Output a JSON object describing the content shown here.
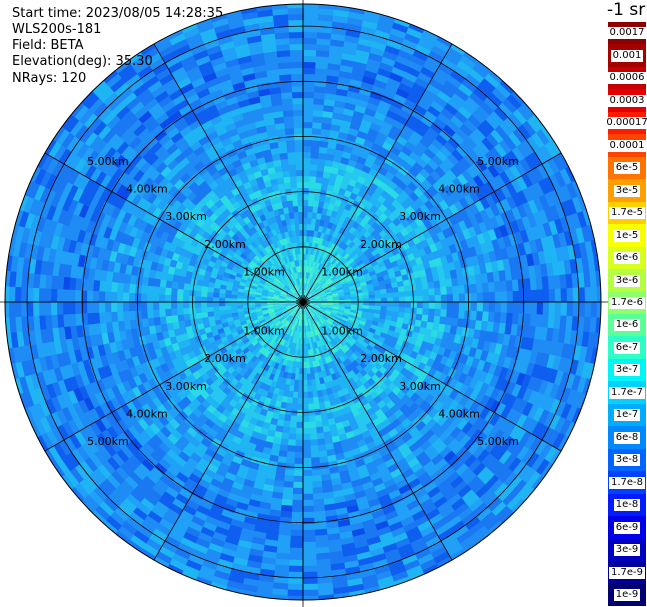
{
  "info": {
    "start_time": "Start time: 2023/08/05 14:28:35",
    "instrument": "WLS200s-181",
    "field": "Field: BETA",
    "elevation": "Elevation(deg): 35.30",
    "nrays": "NRays: 120"
  },
  "colorbar": {
    "title": "-1 sr",
    "entries": [
      {
        "label": "0.0017",
        "color": "#8b0000"
      },
      {
        "label": "0.001",
        "color": "#a50000"
      },
      {
        "label": "0.0006",
        "color": "#c40000"
      },
      {
        "label": "0.0003",
        "color": "#e40000"
      },
      {
        "label": "0.00017",
        "color": "#ff1a00"
      },
      {
        "label": "0.0001",
        "color": "#ff4400"
      },
      {
        "label": "6e-5",
        "color": "#ff7300"
      },
      {
        "label": "3e-5",
        "color": "#ff9f00"
      },
      {
        "label": "1.7e-5",
        "color": "#ffcf00"
      },
      {
        "label": "1e-5",
        "color": "#f7ff00"
      },
      {
        "label": "6e-6",
        "color": "#d9ff1e"
      },
      {
        "label": "3e-6",
        "color": "#b5ff42"
      },
      {
        "label": "1.7e-6",
        "color": "#8cff6b"
      },
      {
        "label": "1e-6",
        "color": "#5dff9a"
      },
      {
        "label": "6e-7",
        "color": "#2effc9"
      },
      {
        "label": "3e-7",
        "color": "#00f5f5"
      },
      {
        "label": "1.7e-7",
        "color": "#00d2ff"
      },
      {
        "label": "1e-7",
        "color": "#00acff"
      },
      {
        "label": "6e-8",
        "color": "#0088ff"
      },
      {
        "label": "3e-8",
        "color": "#0064ff"
      },
      {
        "label": "1.7e-8",
        "color": "#0040ff"
      },
      {
        "label": "1e-8",
        "color": "#001cff"
      },
      {
        "label": "6e-9",
        "color": "#0000e8"
      },
      {
        "label": "3e-9",
        "color": "#0000c0"
      },
      {
        "label": "1.7e-9",
        "color": "#000098"
      },
      {
        "label": "1e-9",
        "color": "#000070"
      }
    ]
  },
  "range_rings": [
    {
      "label": "1.00km",
      "range_km": 1
    },
    {
      "label": "2.00km",
      "range_km": 2
    },
    {
      "label": "3.00km",
      "range_km": 3
    },
    {
      "label": "4.00km",
      "range_km": 4
    },
    {
      "label": "5.00km",
      "range_km": 5
    }
  ],
  "max_range_km": 5.4,
  "spoke_count": 12,
  "scan_palette": [
    "#0a4bea",
    "#0e5ff0",
    "#1a78f2",
    "#1e8cf4",
    "#20a0f6",
    "#1fb4f3",
    "#25c8ee",
    "#2adbe6",
    "#36e8d6",
    "#4af2c4"
  ]
}
